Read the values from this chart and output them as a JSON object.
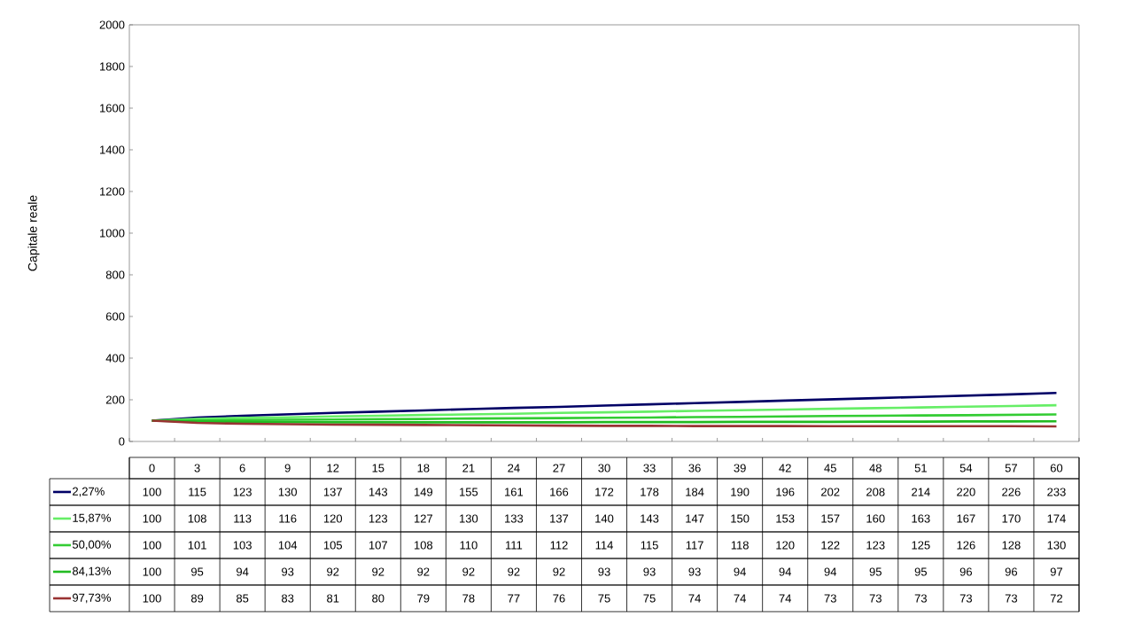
{
  "chart_data": {
    "type": "line",
    "ylabel": "Capitale reale",
    "categories": [
      "0",
      "3",
      "6",
      "9",
      "12",
      "15",
      "18",
      "21",
      "24",
      "27",
      "30",
      "33",
      "36",
      "39",
      "42",
      "45",
      "48",
      "51",
      "54",
      "57",
      "60"
    ],
    "ylim": [
      0,
      2000
    ],
    "yticks": [
      0,
      200,
      400,
      600,
      800,
      1000,
      1200,
      1400,
      1600,
      1800,
      2000
    ],
    "series": [
      {
        "name": "2,27%",
        "color": "#000066",
        "values": [
          100,
          115,
          123,
          130,
          137,
          143,
          149,
          155,
          161,
          166,
          172,
          178,
          184,
          190,
          196,
          202,
          208,
          214,
          220,
          226,
          233
        ]
      },
      {
        "name": "15,87%",
        "color": "#66ee66",
        "values": [
          100,
          108,
          113,
          116,
          120,
          123,
          127,
          130,
          133,
          137,
          140,
          143,
          147,
          150,
          153,
          157,
          160,
          163,
          167,
          170,
          174
        ]
      },
      {
        "name": "50,00%",
        "color": "#33cc33",
        "values": [
          100,
          101,
          103,
          104,
          105,
          107,
          108,
          110,
          111,
          112,
          114,
          115,
          117,
          118,
          120,
          122,
          123,
          125,
          126,
          128,
          130
        ]
      },
      {
        "name": "84,13%",
        "color": "#22bb22",
        "values": [
          100,
          95,
          94,
          93,
          92,
          92,
          92,
          92,
          92,
          92,
          93,
          93,
          93,
          94,
          94,
          94,
          95,
          95,
          96,
          96,
          97
        ]
      },
      {
        "name": "97,73%",
        "color": "#993333",
        "values": [
          100,
          89,
          85,
          83,
          81,
          80,
          79,
          78,
          77,
          76,
          75,
          75,
          74,
          74,
          74,
          73,
          73,
          73,
          73,
          73,
          72
        ]
      }
    ],
    "data_labels": true,
    "legend": "bottom",
    "grid": false,
    "marker": "none",
    "line_style": "solid"
  }
}
